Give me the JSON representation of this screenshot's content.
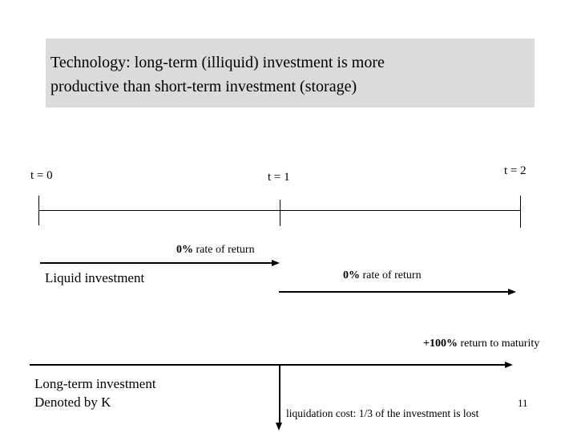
{
  "title": {
    "line1": "Technology: long-term (illiquid) investment is more",
    "line2": "productive than short-term investment (storage)"
  },
  "timeline": {
    "labels": {
      "t0": "t = 0",
      "t1": "t = 1",
      "t2": "t = 2"
    }
  },
  "liquid_investment": {
    "label": "Liquid investment",
    "period1": {
      "pct": "0%",
      "text": " rate of return"
    },
    "period2": {
      "pct": "0%",
      "text": " rate of return"
    }
  },
  "long_term_investment": {
    "label_line1": "Long-term investment",
    "label_line2": "Denoted by K",
    "maturity": {
      "pct": "+100%",
      "text": " return to maturity"
    },
    "liquidation_note": "liquidation cost: 1/3 of the investment is lost"
  },
  "page_number": "11",
  "colors": {
    "title_background": "#dbdbdb",
    "ink": "#000000"
  }
}
